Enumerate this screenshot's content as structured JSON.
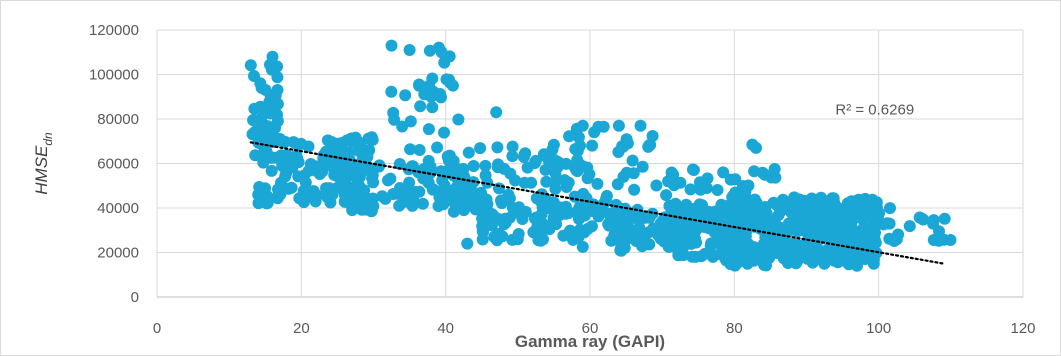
{
  "chart_data": {
    "type": "scatter",
    "xlabel": "Gamma ray (GAPI)",
    "ylabel_main": "HMSE",
    "ylabel_sub": "dn",
    "xlim": [
      0,
      120
    ],
    "ylim": [
      0,
      120000
    ],
    "x_ticks": [
      "0",
      "20",
      "40",
      "60",
      "80",
      "100",
      "120"
    ],
    "y_ticks": [
      "0",
      "20000",
      "40000",
      "60000",
      "80000",
      "100000",
      "120000"
    ],
    "grid": true,
    "marker_color": "#1aa7d6",
    "trendline": {
      "type": "linear",
      "style": "dotted",
      "color": "#000000",
      "x": [
        13,
        109
      ],
      "y": [
        69500,
        15000
      ]
    },
    "annotation": "R² = 0.6269",
    "annotation_pos": {
      "x": 94,
      "y": 82000
    },
    "clusters": [
      {
        "x": [
          13,
          17
        ],
        "y": [
          60000,
          108000
        ],
        "n": 45
      },
      {
        "x": [
          14,
          30
        ],
        "y": [
          42000,
          72000
        ],
        "n": 140
      },
      {
        "x": [
          26,
          45
        ],
        "y": [
          38000,
          62000
        ],
        "n": 90
      },
      {
        "x": [
          32,
          42
        ],
        "y": [
          65000,
          113000
        ],
        "n": 30
      },
      {
        "x": [
          40,
          60
        ],
        "y": [
          40000,
          68000
        ],
        "n": 80
      },
      {
        "x": [
          45,
          66
        ],
        "y": [
          25000,
          45000
        ],
        "n": 110
      },
      {
        "x": [
          55,
          70
        ],
        "y": [
          45000,
          77000
        ],
        "n": 35
      },
      {
        "x": [
          64,
          82
        ],
        "y": [
          18000,
          40000
        ],
        "n": 140
      },
      {
        "x": [
          70,
          86
        ],
        "y": [
          30000,
          58000
        ],
        "n": 60
      },
      {
        "x": [
          78,
          100
        ],
        "y": [
          14000,
          45000
        ],
        "n": 400
      },
      {
        "x": [
          98,
          110
        ],
        "y": [
          22000,
          40000
        ],
        "n": 25
      }
    ],
    "outliers": [
      {
        "x": 43,
        "y": 24000
      },
      {
        "x": 59,
        "y": 22500
      },
      {
        "x": 83,
        "y": 67000
      },
      {
        "x": 82.5,
        "y": 68500
      },
      {
        "x": 32.5,
        "y": 113000
      },
      {
        "x": 35,
        "y": 111000
      },
      {
        "x": 16,
        "y": 108000
      },
      {
        "x": 47,
        "y": 83000
      },
      {
        "x": 64,
        "y": 77000
      },
      {
        "x": 67,
        "y": 77000
      },
      {
        "x": 59,
        "y": 77000
      },
      {
        "x": 41,
        "y": 95000
      },
      {
        "x": 38,
        "y": 90000
      }
    ]
  }
}
